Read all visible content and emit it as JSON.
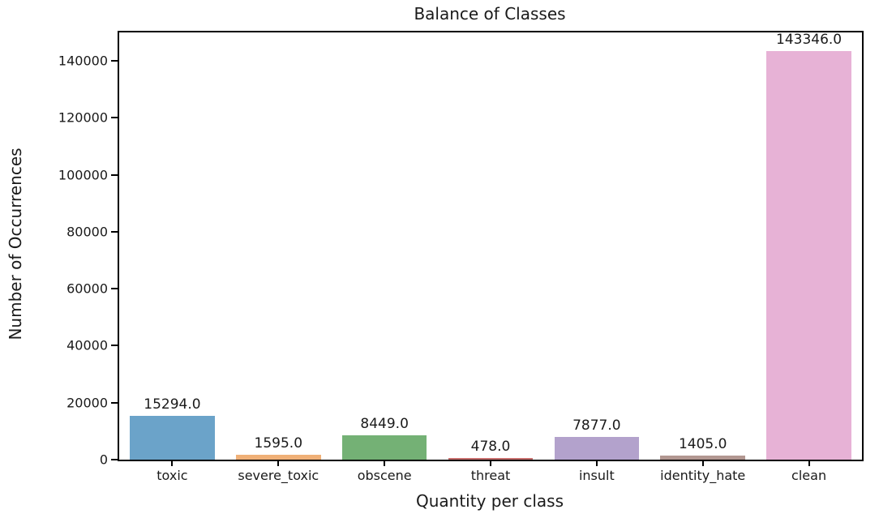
{
  "figure": {
    "title": "Balance of Classes",
    "xlabel": "Quantity per class",
    "ylabel": "Number of Occurrences"
  },
  "chart_data": {
    "type": "bar",
    "title": "Balance of Classes",
    "xlabel": "Quantity per class",
    "ylabel": "Number of Occurrences",
    "categories": [
      "toxic",
      "severe_toxic",
      "obscene",
      "threat",
      "insult",
      "identity_hate",
      "clean"
    ],
    "values": [
      15294,
      1595,
      8449,
      478,
      7877,
      1405,
      143346
    ],
    "bar_value_labels": [
      "15294.0",
      "1595.0",
      "8449.0",
      "478.0",
      "7877.0",
      "1405.0",
      "143346.0"
    ],
    "bar_colors": [
      "#6ba3c9",
      "#f0b077",
      "#74b175",
      "#c96f6e",
      "#b3a2cc",
      "#b29791",
      "#e7b2d6"
    ],
    "ylim": [
      0,
      150000
    ],
    "yticks": [
      0,
      20000,
      40000,
      60000,
      80000,
      100000,
      120000,
      140000
    ],
    "ytick_labels": [
      "0",
      "20000",
      "40000",
      "60000",
      "80000",
      "100000",
      "120000",
      "140000"
    ],
    "bar_width_fraction": 0.8,
    "grid": false,
    "legend_position": "none",
    "background_color": "#ffffff",
    "axis_color": "#000000",
    "text_color": "#1a1a1a"
  }
}
